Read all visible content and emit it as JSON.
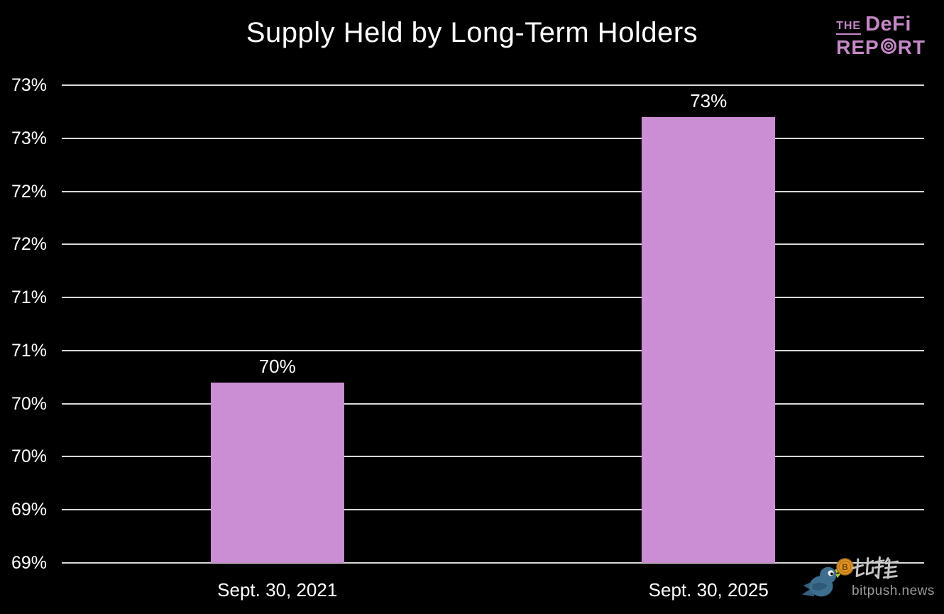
{
  "header": {
    "title": "Supply Held by Long-Term Holders",
    "logo": {
      "the": "THE",
      "defi": "DeFi",
      "rep": "REP",
      "rt": "RT",
      "color": "#c588c7"
    }
  },
  "chart_data": {
    "type": "bar",
    "title": "Supply Held by Long-Term Holders",
    "categories": [
      "Sept. 30, 2021",
      "Sept. 30, 2025"
    ],
    "values": [
      70.2,
      72.7
    ],
    "bar_labels": [
      "70%",
      "73%"
    ],
    "ylabel": "",
    "xlabel": "",
    "ylim": [
      68.5,
      73.0
    ],
    "ytick_step": 0.5,
    "ytick_labels_top_to_bottom": [
      "73%",
      "73%",
      "72%",
      "72%",
      "71%",
      "71%",
      "70%",
      "70%",
      "69%",
      "69%"
    ],
    "grid": true,
    "legend": "none",
    "background_color": "#000000",
    "text_color": "#ffffff",
    "gridline_color": "#d9d9d9",
    "bar_color": "#cb8dd3"
  },
  "watermark": {
    "cn_name": "比推",
    "domain": "bitpush.news",
    "bird_color": "#3e6e8e",
    "coin_color": "#e2941e"
  }
}
